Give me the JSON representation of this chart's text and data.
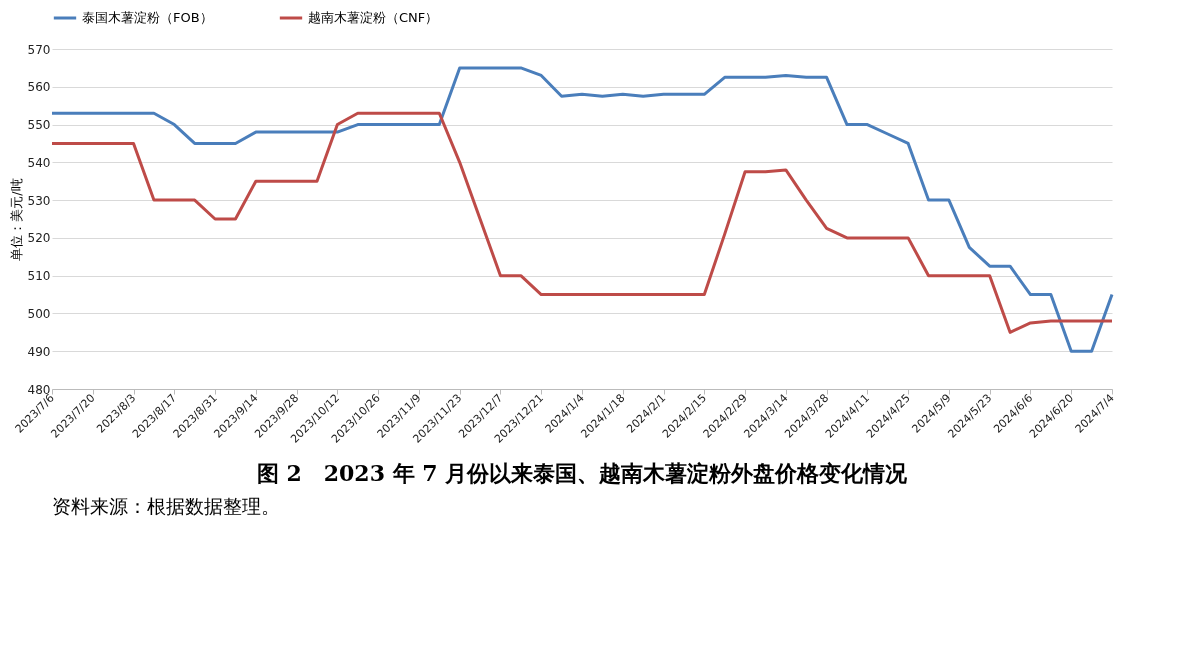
{
  "chart_data": {
    "type": "line",
    "title": "图 2　2023 年 7 月份以来泰国、越南木薯淀粉外盘价格变化情况",
    "ylabel": "单位：美元/吨",
    "annotations": [
      "资料来源：根据数据整理。"
    ],
    "categories": [
      "2023/7/6",
      null,
      "2023/7/20",
      null,
      "2023/8/3",
      null,
      "2023/8/17",
      null,
      "2023/8/31",
      null,
      "2023/9/14",
      null,
      "2023/9/28",
      null,
      "2023/10/12",
      null,
      "2023/10/26",
      null,
      "2023/11/9",
      null,
      "2023/11/23",
      null,
      "2023/12/7",
      null,
      "2023/12/21",
      null,
      "2024/1/4",
      null,
      "2024/1/18",
      null,
      "2024/2/1",
      null,
      "2024/2/15",
      null,
      "2024/2/29",
      null,
      "2024/3/14",
      null,
      "2024/3/28",
      null,
      "2024/4/11",
      null,
      "2024/4/25",
      null,
      "2024/5/9",
      null,
      "2024/5/23",
      null,
      "2024/6/6",
      null,
      "2024/6/20",
      null,
      "2024/7/4"
    ],
    "series": [
      {
        "name": "泰国木薯淀粉（FOB）",
        "color": "#4a7ebb",
        "values": [
          553,
          553,
          553,
          553,
          553,
          553,
          550,
          545,
          545,
          545,
          548,
          548,
          548,
          548,
          548,
          550,
          550,
          550,
          550,
          550,
          565,
          565,
          565,
          565,
          563,
          557.5,
          558,
          557.5,
          558,
          557.5,
          558,
          558,
          558,
          562.5,
          562.5,
          562.5,
          563,
          562.5,
          562.5,
          550,
          550,
          547.5,
          545,
          530,
          530,
          517.5,
          512.5,
          512.5,
          505,
          505,
          490,
          490,
          505
        ]
      },
      {
        "name": "越南木薯淀粉（CNF）",
        "color": "#be4b48",
        "values": [
          545,
          545,
          545,
          545,
          545,
          530,
          530,
          530,
          525,
          525,
          535,
          535,
          535,
          535,
          550,
          553,
          553,
          553,
          553,
          553,
          540,
          525,
          510,
          510,
          505,
          505,
          505,
          505,
          505,
          505,
          505,
          505,
          505,
          521,
          537.5,
          537.5,
          538,
          530,
          522.5,
          520,
          520,
          520,
          520,
          510,
          510,
          510,
          510,
          495,
          497.5,
          498,
          498,
          498,
          498
        ]
      }
    ],
    "ylim": [
      480,
      570
    ],
    "yticks": [
      480,
      490,
      500,
      510,
      520,
      530,
      540,
      550,
      560,
      570
    ],
    "grid": "y",
    "legend": "top",
    "marker": "none",
    "line_style": "solid"
  }
}
